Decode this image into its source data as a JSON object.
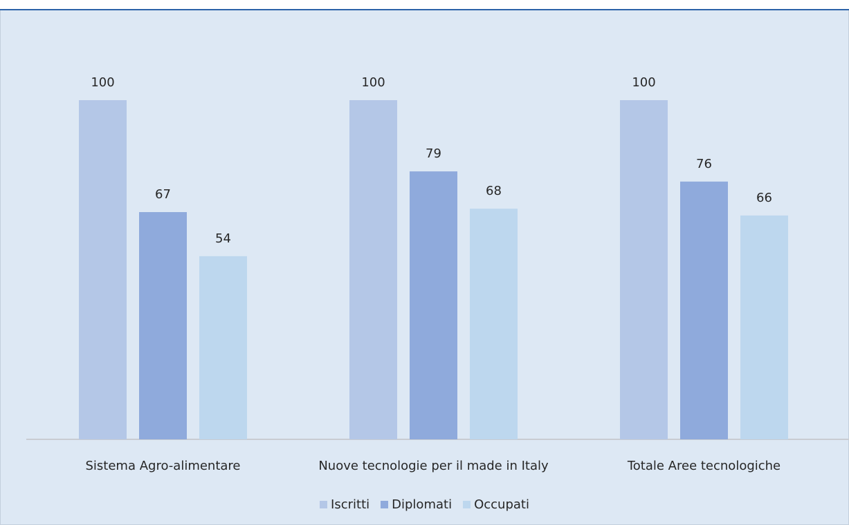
{
  "title": "",
  "colors": {
    "background": "#dde8f4",
    "title": "#2b62a8",
    "baseline": "#c8ccd2",
    "text": "#262626"
  },
  "chart_data": {
    "type": "bar",
    "categories": [
      "Sistema Agro-alimentare",
      "Nuove tecnologie per il made in Italy",
      "Totale Aree tecnologiche"
    ],
    "series": [
      {
        "name": "Iscritti",
        "values": [
          100,
          100,
          100
        ],
        "color": "#b4c7e7"
      },
      {
        "name": "Diplomati",
        "values": [
          67,
          79,
          76
        ],
        "color": "#8faadc"
      },
      {
        "name": "Occupati",
        "values": [
          54,
          68,
          66
        ],
        "color": "#bdd7ee"
      }
    ],
    "ylim": [
      0,
      100
    ],
    "grid": false,
    "data_labels": true,
    "legend_position": "bottom"
  }
}
